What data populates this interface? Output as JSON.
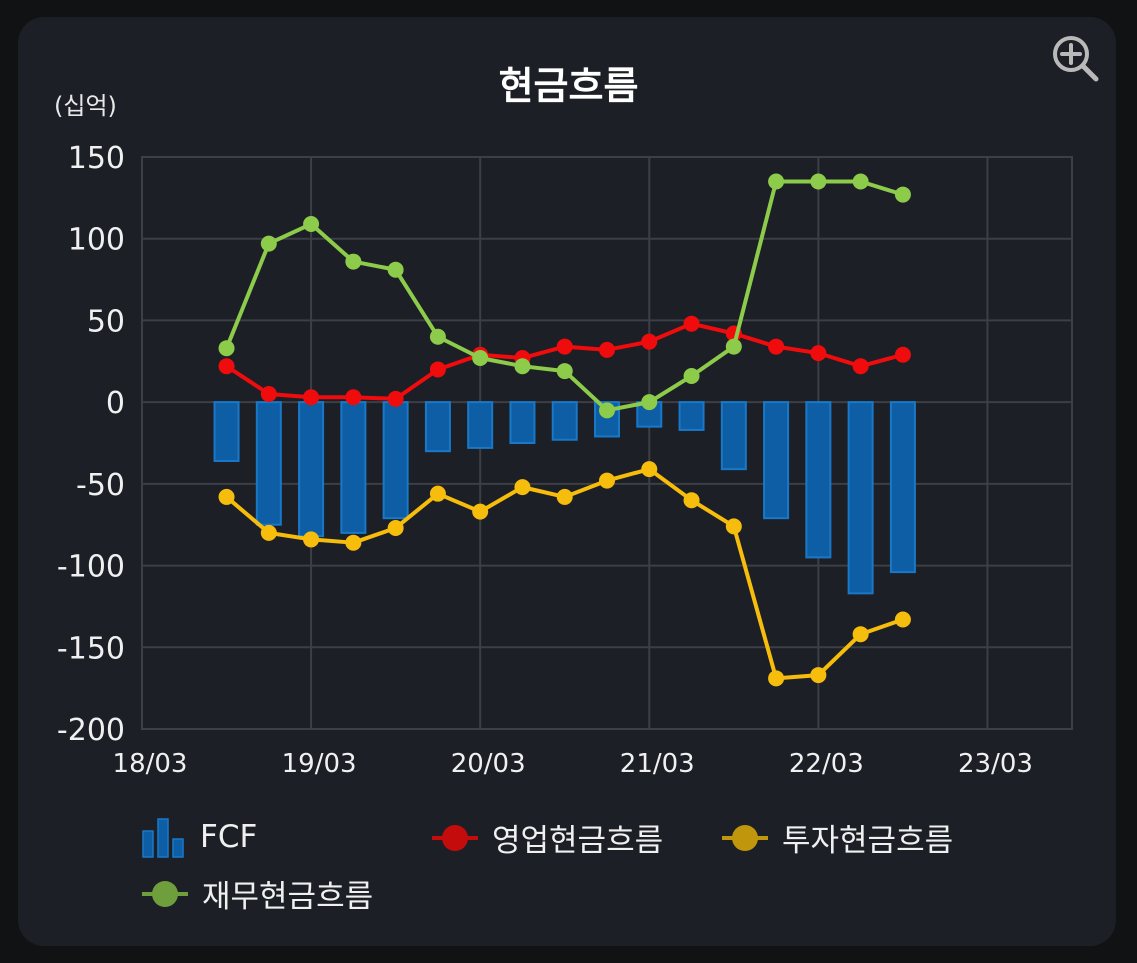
{
  "header": {
    "title": "현금흐름",
    "unit": "(십억)"
  },
  "icons": {
    "zoom": "zoom-in-icon"
  },
  "colors": {
    "background": "#111213",
    "card": "#1c1f26",
    "grid": "#3c3f45",
    "axis_text": "#f0f0f0",
    "fcf_fill": "#0d5ea5",
    "fcf_stroke": "#1a78c8",
    "operating": "#f00c0c",
    "investing": "#f7bd0c",
    "financing": "#8dcb4b"
  },
  "legend": {
    "fcf": "FCF",
    "operating": "영업현금흐름",
    "investing": "투자현금흐름",
    "financing": "재무현금흐름"
  },
  "chart_data": {
    "type": "bar",
    "title": "현금흐름",
    "ylabel": "(십억)",
    "xlabel": "",
    "ylim": [
      -200,
      150
    ],
    "yticks": [
      150,
      100,
      50,
      0,
      -50,
      -100,
      -150,
      -200
    ],
    "xlim": [
      "18/03",
      "23/09"
    ],
    "xticks": [
      "18/03",
      "19/03",
      "20/03",
      "21/03",
      "22/03",
      "23/03"
    ],
    "grid": true,
    "legend_position": "bottom",
    "categories": [
      "18/09",
      "18/12",
      "19/03",
      "19/06",
      "19/09",
      "19/12",
      "20/03",
      "20/06",
      "20/09",
      "20/12",
      "21/03",
      "21/06",
      "21/09",
      "21/12",
      "22/03",
      "22/06",
      "22/09"
    ],
    "series": [
      {
        "name": "FCF",
        "kind": "bar",
        "values": [
          -36,
          -75,
          -82,
          -80,
          -71,
          -30,
          -28,
          -25,
          -23,
          -21,
          -15,
          -17,
          -41,
          -71,
          -95,
          -117,
          -104
        ]
      },
      {
        "name": "영업현금흐름",
        "kind": "line",
        "values": [
          22,
          5,
          3,
          3,
          2,
          20,
          29,
          27,
          34,
          32,
          37,
          48,
          42,
          34,
          30,
          22,
          29
        ]
      },
      {
        "name": "투자현금흐름",
        "kind": "line",
        "values": [
          -58,
          -80,
          -84,
          -86,
          -77,
          -56,
          -67,
          -52,
          -58,
          -48,
          -41,
          -60,
          -76,
          -169,
          -167,
          -142,
          -133
        ]
      },
      {
        "name": "재무현금흐름",
        "kind": "line",
        "values": [
          33,
          97,
          109,
          86,
          81,
          40,
          27,
          22,
          19,
          -5,
          0,
          16,
          34,
          135,
          135,
          135,
          127
        ]
      }
    ]
  }
}
